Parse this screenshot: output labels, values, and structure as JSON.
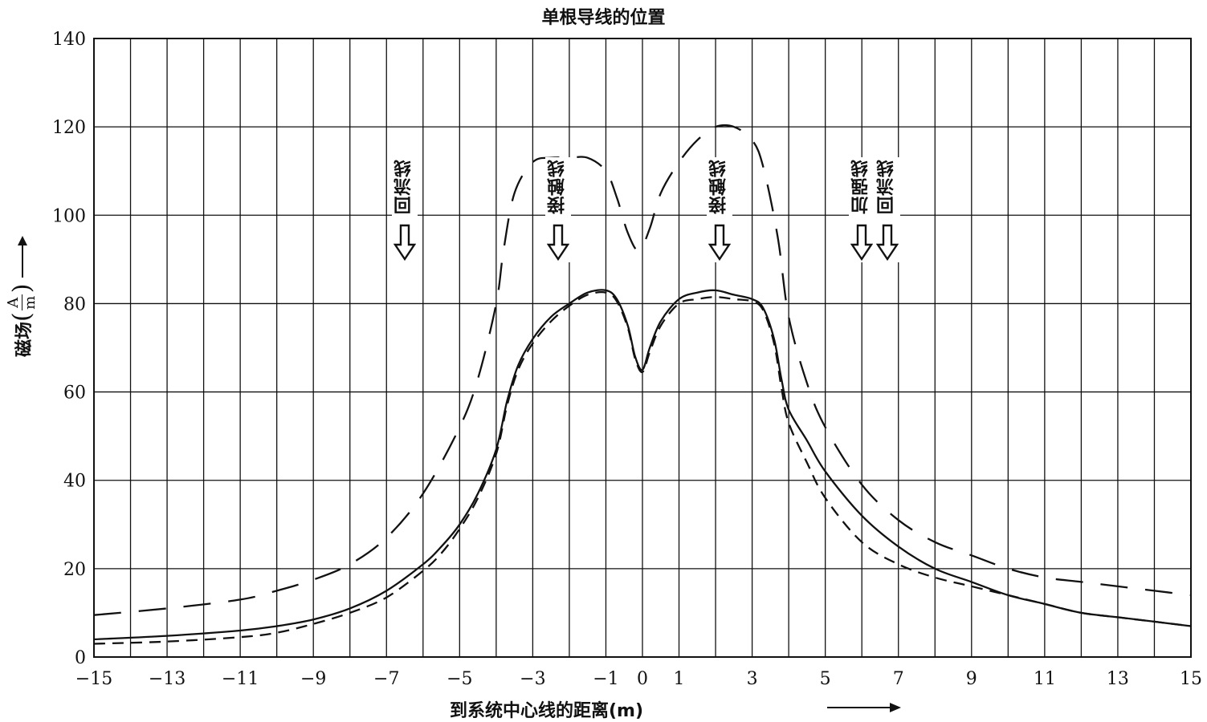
{
  "chart_data": {
    "type": "line",
    "title": "单根导线的位置",
    "xlabel": "到系统中心线的距离(m)",
    "ylabel": {
      "text": "磁场",
      "unit_numerator": "A",
      "unit_denominator": "m"
    },
    "xlim": [
      -15,
      15
    ],
    "ylim": [
      0,
      140
    ],
    "x_ticks": [
      "−15",
      "−13",
      "−11",
      "−9",
      "−7",
      "−5",
      "−3",
      "−1",
      "0",
      "1",
      "3",
      "5",
      "7",
      "9",
      "11",
      "13",
      "15"
    ],
    "x_tick_values": [
      -15,
      -13,
      -11,
      -9,
      -7,
      -5,
      -3,
      -1,
      0,
      1,
      3,
      5,
      7,
      9,
      11,
      13,
      15
    ],
    "y_ticks": [
      "0",
      "20",
      "40",
      "60",
      "80",
      "100",
      "120",
      "140"
    ],
    "y_tick_values": [
      0,
      20,
      40,
      60,
      80,
      100,
      120,
      140
    ],
    "grid": true,
    "series": [
      {
        "style": "solid",
        "x": [
          -15,
          -13,
          -11,
          -10,
          -9,
          -8,
          -7,
          -6,
          -5.5,
          -5,
          -4.5,
          -4,
          -3.7,
          -3.4,
          -3,
          -2.5,
          -2,
          -1.5,
          -1,
          -0.7,
          -0.4,
          -0.2,
          0,
          0.2,
          0.5,
          1,
          1.5,
          2,
          2.5,
          3,
          3.3,
          3.6,
          3.8,
          4,
          4.5,
          5,
          6,
          7,
          8,
          9,
          10,
          11,
          12,
          13,
          14,
          15
        ],
        "y": [
          4,
          4.8,
          6,
          7,
          8.5,
          11,
          15,
          21,
          25,
          30,
          37,
          47,
          58,
          66,
          72,
          77,
          80,
          82.5,
          83,
          81,
          75,
          68,
          65,
          70,
          76,
          81,
          82.5,
          83,
          82,
          81,
          79,
          72,
          63,
          56,
          49,
          42,
          32,
          25,
          20,
          17,
          14,
          12,
          10,
          9,
          8,
          7
        ]
      },
      {
        "style": "dashed",
        "x": [
          -15,
          -13,
          -11,
          -10,
          -9,
          -8,
          -7,
          -6,
          -5.5,
          -5,
          -4.5,
          -4,
          -3.7,
          -3.4,
          -3,
          -2.5,
          -2,
          -1.5,
          -1,
          -0.7,
          -0.4,
          -0.2,
          0,
          0.2,
          0.5,
          1,
          1.5,
          2,
          2.5,
          3,
          3.3,
          3.6,
          3.8,
          4,
          4.5,
          5,
          6,
          7,
          8,
          9,
          10,
          11,
          12,
          13,
          14,
          15
        ],
        "y": [
          3,
          3.5,
          4.5,
          5.5,
          7.5,
          10,
          13.5,
          19.5,
          23.5,
          29,
          36,
          46,
          57,
          65,
          71,
          76,
          79.5,
          82,
          82.5,
          80.5,
          74.5,
          67.5,
          64.5,
          69,
          75,
          80,
          81,
          81.5,
          81,
          80.5,
          78.5,
          71,
          61,
          53,
          44,
          36,
          26,
          21,
          18,
          16,
          14,
          12,
          10,
          9,
          8,
          7
        ]
      },
      {
        "style": "long-dash",
        "x": [
          -15,
          -13,
          -11,
          -10,
          -9,
          -8,
          -7,
          -6,
          -5,
          -4.5,
          -4,
          -3.8,
          -3.5,
          -3,
          -2.5,
          -2,
          -1.5,
          -1,
          -0.7,
          -0.4,
          -0.1,
          0.2,
          0.5,
          1,
          1.5,
          2,
          2.5,
          3,
          3.3,
          3.7,
          4,
          4.5,
          5,
          6,
          7,
          8,
          9,
          10,
          11,
          12,
          13,
          14,
          15
        ],
        "y": [
          9.5,
          11,
          13,
          15,
          17.5,
          21,
          27,
          37,
          52,
          63,
          80,
          92,
          105,
          112,
          113,
          113,
          113,
          110,
          104,
          96,
          92,
          97,
          105,
          112,
          117,
          120,
          120,
          117,
          111,
          95,
          77,
          62,
          52,
          39,
          31,
          26,
          23,
          20,
          18,
          17,
          16,
          15,
          14
        ]
      }
    ],
    "annotations": [
      {
        "label": "回流线",
        "x": -6.5
      },
      {
        "label": "接触线",
        "x": -2.3
      },
      {
        "label": "接触线",
        "x": 2.1
      },
      {
        "label": "加强线",
        "x": 6
      },
      {
        "label": "回流线",
        "x": 6.7
      }
    ]
  }
}
